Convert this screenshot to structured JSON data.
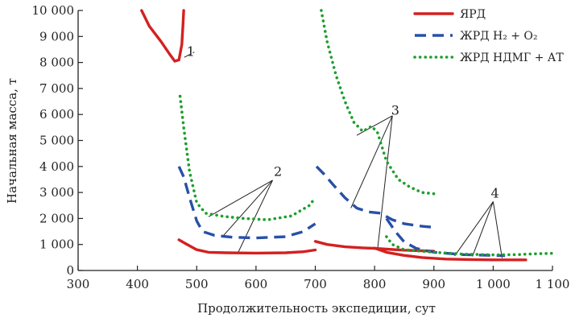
{
  "chart_data": {
    "type": "line",
    "title": "",
    "xlabel": "Продолжительность экспедиции, сут",
    "ylabel": "Начальная масса, т",
    "xlim": [
      300,
      1100
    ],
    "ylim": [
      0,
      10000
    ],
    "x_ticks": [
      {
        "value": 300,
        "label": "300"
      },
      {
        "value": 400,
        "label": "400"
      },
      {
        "value": 500,
        "label": "500"
      },
      {
        "value": 600,
        "label": "600"
      },
      {
        "value": 700,
        "label": "700"
      },
      {
        "value": 800,
        "label": "800"
      },
      {
        "value": 900,
        "label": "900"
      },
      {
        "value": 1000,
        "label": "1 000"
      },
      {
        "value": 1100,
        "label": "1 100"
      }
    ],
    "y_ticks": [
      {
        "value": 0,
        "label": "0"
      },
      {
        "value": 1000,
        "label": "1 000"
      },
      {
        "value": 2000,
        "label": "2 000"
      },
      {
        "value": 3000,
        "label": "3 000"
      },
      {
        "value": 4000,
        "label": "4 000"
      },
      {
        "value": 5000,
        "label": "5 000"
      },
      {
        "value": 6000,
        "label": "6 000"
      },
      {
        "value": 7000,
        "label": "7 000"
      },
      {
        "value": 8000,
        "label": "8 000"
      },
      {
        "value": 9000,
        "label": "9 000"
      },
      {
        "value": 10000,
        "label": "10 000"
      }
    ],
    "grid": false,
    "legend_position": "top-right",
    "series": [
      {
        "name": "ЯРД",
        "color": "#d42020",
        "style": "solid",
        "segments": [
          [
            [
              407,
              10000
            ],
            [
              420,
              9400
            ],
            [
              440,
              8800
            ],
            [
              455,
              8300
            ],
            [
              463,
              8050
            ],
            [
              470,
              8100
            ],
            [
              475,
              8700
            ],
            [
              477,
              9500
            ],
            [
              478,
              10000
            ]
          ],
          [
            [
              470,
              1180
            ],
            [
              480,
              1050
            ],
            [
              500,
              800
            ],
            [
              520,
              700
            ],
            [
              550,
              680
            ],
            [
              600,
              670
            ],
            [
              650,
              680
            ],
            [
              680,
              720
            ],
            [
              700,
              790
            ]
          ],
          [
            [
              700,
              1120
            ],
            [
              720,
              1000
            ],
            [
              750,
              910
            ],
            [
              780,
              870
            ],
            [
              800,
              850
            ],
            [
              820,
              820
            ],
            [
              850,
              780
            ],
            [
              880,
              760
            ],
            [
              900,
              740
            ]
          ],
          [
            [
              800,
              860
            ],
            [
              820,
              700
            ],
            [
              850,
              580
            ],
            [
              880,
              500
            ],
            [
              920,
              440
            ],
            [
              960,
              420
            ],
            [
              1000,
              410
            ],
            [
              1030,
              410
            ],
            [
              1055,
              410
            ]
          ]
        ]
      },
      {
        "name": "ЖРД H₂ + O₂",
        "color": "#2850a8",
        "style": "dashed",
        "segments": [
          [
            [
              470,
              4000
            ],
            [
              478,
              3600
            ],
            [
              488,
              2800
            ],
            [
              500,
              1900
            ],
            [
              510,
              1500
            ],
            [
              530,
              1350
            ],
            [
              560,
              1280
            ],
            [
              600,
              1250
            ],
            [
              650,
              1300
            ],
            [
              680,
              1500
            ],
            [
              700,
              1800
            ]
          ],
          [
            [
              702,
              4000
            ],
            [
              715,
              3700
            ],
            [
              730,
              3300
            ],
            [
              750,
              2800
            ],
            [
              770,
              2400
            ],
            [
              790,
              2250
            ],
            [
              810,
              2200
            ],
            [
              830,
              1950
            ],
            [
              850,
              1800
            ],
            [
              880,
              1700
            ],
            [
              905,
              1650
            ]
          ],
          [
            [
              820,
              2000
            ],
            [
              835,
              1500
            ],
            [
              850,
              1100
            ],
            [
              870,
              850
            ],
            [
              900,
              700
            ],
            [
              950,
              610
            ],
            [
              1000,
              580
            ],
            [
              1020,
              570
            ]
          ]
        ]
      },
      {
        "name": "ЖРД НДМГ + АТ",
        "color": "#1e9e2e",
        "style": "dotted",
        "segments": [
          [
            [
              472,
              6700
            ],
            [
              478,
              5500
            ],
            [
              488,
              3800
            ],
            [
              500,
              2600
            ],
            [
              515,
              2200
            ],
            [
              545,
              2080
            ],
            [
              580,
              2000
            ],
            [
              620,
              1950
            ],
            [
              660,
              2100
            ],
            [
              690,
              2500
            ],
            [
              700,
              2800
            ]
          ],
          [
            [
              710,
              10000
            ],
            [
              720,
              8800
            ],
            [
              735,
              7500
            ],
            [
              750,
              6500
            ],
            [
              765,
              5700
            ],
            [
              780,
              5350
            ],
            [
              795,
              5550
            ],
            [
              805,
              5300
            ],
            [
              820,
              4200
            ],
            [
              840,
              3500
            ],
            [
              860,
              3200
            ],
            [
              880,
              3000
            ],
            [
              900,
              2950
            ]
          ],
          [
            [
              820,
              1300
            ],
            [
              830,
              1000
            ],
            [
              850,
              800
            ],
            [
              900,
              700
            ],
            [
              950,
              630
            ],
            [
              1000,
              600
            ],
            [
              1040,
              610
            ],
            [
              1070,
              640
            ],
            [
              1100,
              660
            ]
          ]
        ]
      }
    ],
    "annotations": [
      {
        "text": "1",
        "x": 490,
        "y": 8400,
        "lines": [
          [
            [
              479,
              8200
            ],
            [
              496,
              8400
            ]
          ]
        ]
      },
      {
        "text": "2",
        "x": 637,
        "y": 3800,
        "lines": [
          [
            [
              628,
              3470
            ],
            [
              520,
              2070
            ]
          ],
          [
            [
              628,
              3470
            ],
            [
              545,
              1340
            ]
          ],
          [
            [
              628,
              3470
            ],
            [
              570,
              700
            ]
          ]
        ]
      },
      {
        "text": "3",
        "x": 835,
        "y": 6150,
        "lines": [
          [
            [
              830,
              5950
            ],
            [
              770,
              5200
            ]
          ],
          [
            [
              830,
              5950
            ],
            [
              760,
              2400
            ]
          ],
          [
            [
              830,
              5950
            ],
            [
              805,
              820
            ]
          ]
        ]
      },
      {
        "text": "4",
        "x": 1003,
        "y": 2950,
        "lines": [
          [
            [
              1000,
              2650
            ],
            [
              935,
              560
            ]
          ],
          [
            [
              1000,
              2650
            ],
            [
              965,
              540
            ]
          ],
          [
            [
              1000,
              2650
            ],
            [
              1015,
              480
            ]
          ]
        ]
      }
    ]
  }
}
